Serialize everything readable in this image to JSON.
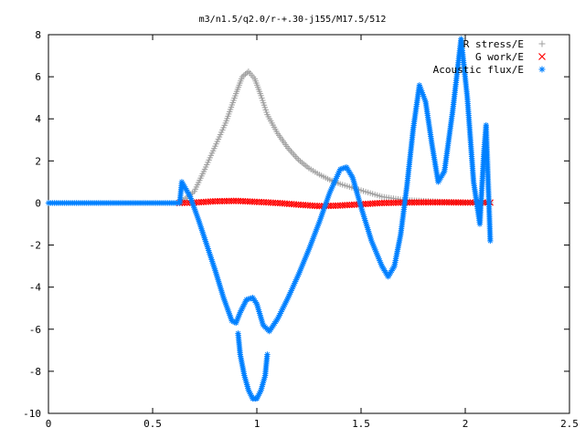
{
  "chart_data": {
    "type": "scatter",
    "title": "m3/n1.5/q2.0/r-+.30-j155/M17.5/512",
    "xlabel": "",
    "ylabel": "",
    "xlim": [
      0,
      2.5
    ],
    "ylim": [
      -10,
      8
    ],
    "x_ticks": [
      "0",
      "0.5",
      "1",
      "1.5",
      "2",
      "2.5"
    ],
    "y_ticks": [
      "-10",
      "-8",
      "-6",
      "-4",
      "-2",
      "0",
      "2",
      "4",
      "6",
      "8"
    ],
    "x_tick_values": [
      0,
      0.5,
      1,
      1.5,
      2,
      2.5
    ],
    "y_tick_values": [
      -10,
      -8,
      -6,
      -4,
      -2,
      0,
      2,
      4,
      6,
      8
    ],
    "grid": false,
    "legend_position": "top-right",
    "series": [
      {
        "name": "R stress/E",
        "marker": "+",
        "color": "#a0a0a0",
        "points": [
          [
            0.63,
            0.0
          ],
          [
            0.7,
            0.55
          ],
          [
            0.75,
            1.6
          ],
          [
            0.8,
            2.7
          ],
          [
            0.85,
            3.8
          ],
          [
            0.9,
            5.2
          ],
          [
            0.93,
            6.0
          ],
          [
            0.96,
            6.25
          ],
          [
            0.99,
            5.9
          ],
          [
            1.02,
            5.1
          ],
          [
            1.05,
            4.2
          ],
          [
            1.1,
            3.3
          ],
          [
            1.15,
            2.6
          ],
          [
            1.2,
            2.05
          ],
          [
            1.25,
            1.65
          ],
          [
            1.3,
            1.35
          ],
          [
            1.35,
            1.1
          ],
          [
            1.4,
            0.9
          ],
          [
            1.5,
            0.6
          ],
          [
            1.6,
            0.3
          ],
          [
            1.7,
            0.15
          ],
          [
            1.8,
            0.1
          ],
          [
            1.9,
            0.05
          ],
          [
            2.0,
            0.03
          ],
          [
            2.12,
            0.02
          ]
        ]
      },
      {
        "name": "G work/E",
        "marker": "x",
        "color": "#ff0000",
        "points": [
          [
            0.63,
            0.0
          ],
          [
            0.7,
            0.02
          ],
          [
            0.8,
            0.08
          ],
          [
            0.9,
            0.1
          ],
          [
            1.0,
            0.05
          ],
          [
            1.1,
            0.0
          ],
          [
            1.2,
            -0.08
          ],
          [
            1.3,
            -0.15
          ],
          [
            1.4,
            -0.12
          ],
          [
            1.5,
            -0.06
          ],
          [
            1.6,
            0.0
          ],
          [
            1.7,
            0.02
          ],
          [
            1.8,
            0.03
          ],
          [
            1.9,
            0.03
          ],
          [
            2.0,
            0.02
          ],
          [
            2.12,
            0.02
          ]
        ]
      },
      {
        "name": "Acoustic flux/E",
        "marker": "*",
        "color": "#0080ff",
        "points": [
          [
            0.0,
            0.0
          ],
          [
            0.63,
            0.0
          ],
          [
            0.64,
            1.0
          ],
          [
            0.68,
            0.3
          ],
          [
            0.72,
            -0.8
          ],
          [
            0.76,
            -2.0
          ],
          [
            0.8,
            -3.2
          ],
          [
            0.84,
            -4.5
          ],
          [
            0.88,
            -5.6
          ],
          [
            0.9,
            -5.7
          ],
          [
            0.92,
            -5.2
          ],
          [
            0.95,
            -4.6
          ],
          [
            0.98,
            -4.5
          ],
          [
            1.0,
            -4.8
          ],
          [
            1.03,
            -5.8
          ],
          [
            1.06,
            -6.1
          ],
          [
            1.1,
            -5.5
          ],
          [
            1.15,
            -4.5
          ],
          [
            1.2,
            -3.4
          ],
          [
            1.25,
            -2.2
          ],
          [
            1.3,
            -0.9
          ],
          [
            1.35,
            0.5
          ],
          [
            1.4,
            1.6
          ],
          [
            1.43,
            1.7
          ],
          [
            1.46,
            1.2
          ],
          [
            1.5,
            -0.2
          ],
          [
            1.55,
            -1.8
          ],
          [
            1.6,
            -3.0
          ],
          [
            1.63,
            -3.5
          ],
          [
            1.66,
            -3.0
          ],
          [
            1.69,
            -1.5
          ],
          [
            1.72,
            0.8
          ],
          [
            1.75,
            3.5
          ],
          [
            1.78,
            5.6
          ],
          [
            1.81,
            4.8
          ],
          [
            1.84,
            2.8
          ],
          [
            1.87,
            1.0
          ],
          [
            1.9,
            1.5
          ],
          [
            1.94,
            4.4
          ],
          [
            1.98,
            7.8
          ],
          [
            2.01,
            5.0
          ],
          [
            2.04,
            1.0
          ],
          [
            2.07,
            -1.0
          ],
          [
            2.09,
            2.5
          ],
          [
            2.1,
            3.7
          ],
          [
            2.12,
            -1.8
          ]
        ],
        "secondary_points": [
          [
            0.91,
            -6.2
          ],
          [
            0.92,
            -7.2
          ],
          [
            0.94,
            -8.2
          ],
          [
            0.96,
            -8.9
          ],
          [
            0.98,
            -9.3
          ],
          [
            1.0,
            -9.3
          ],
          [
            1.02,
            -8.9
          ],
          [
            1.04,
            -8.2
          ],
          [
            1.05,
            -7.2
          ]
        ]
      }
    ]
  }
}
